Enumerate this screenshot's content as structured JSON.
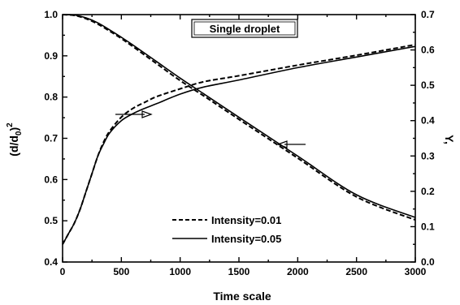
{
  "chart_data": {
    "type": "line",
    "title": "Single droplet",
    "xlabel": "Time scale",
    "ylabel_left_base": "(d/d",
    "ylabel_left_sub": "0",
    "ylabel_left_close": ")",
    "ylabel_left_sup": "2",
    "ylabel_right": "Y,",
    "xlim": [
      0,
      3000
    ],
    "ylim_left": [
      0.4,
      1.0
    ],
    "ylim_right": [
      0.0,
      0.7
    ],
    "xticks": [
      "0",
      "500",
      "1000",
      "1500",
      "2000",
      "2500",
      "3000"
    ],
    "yticks_left": [
      "0.4",
      "0.5",
      "0.6",
      "0.7",
      "0.8",
      "0.9",
      "1.0"
    ],
    "yticks_right": [
      "0.0",
      "0.1",
      "0.2",
      "0.3",
      "0.4",
      "0.5",
      "0.6",
      "0.7"
    ],
    "grid": false,
    "legend_position": "bottom-center",
    "legend": [
      {
        "label": "Intensity=0.01",
        "style": "dashed"
      },
      {
        "label": "Intensity=0.05",
        "style": "solid"
      }
    ],
    "series": [
      {
        "name": "Intensity=0.01",
        "axis": "left",
        "style": "dashed",
        "x": [
          0,
          100,
          200,
          300,
          400,
          500,
          600,
          800,
          1000,
          1200,
          1500,
          2000,
          2500,
          3000
        ],
        "y": [
          1.0,
          0.998,
          0.99,
          0.977,
          0.96,
          0.942,
          0.922,
          0.881,
          0.84,
          0.803,
          0.746,
          0.652,
          0.558,
          0.502
        ]
      },
      {
        "name": "Intensity=0.05",
        "axis": "left",
        "style": "solid",
        "x": [
          0,
          100,
          200,
          300,
          400,
          500,
          600,
          800,
          1000,
          1200,
          1500,
          2000,
          2500,
          3000
        ],
        "y": [
          1.0,
          0.999,
          0.992,
          0.98,
          0.963,
          0.945,
          0.926,
          0.886,
          0.846,
          0.808,
          0.751,
          0.657,
          0.563,
          0.508
        ]
      },
      {
        "name": "Intensity=0.01",
        "axis": "right",
        "style": "dashed",
        "x": [
          0,
          50,
          100,
          150,
          200,
          250,
          300,
          350,
          400,
          500,
          600,
          700,
          800,
          1000,
          1200,
          1500,
          2000,
          2500,
          3000
        ],
        "y": [
          0.05,
          0.08,
          0.11,
          0.15,
          0.2,
          0.25,
          0.3,
          0.34,
          0.37,
          0.41,
          0.435,
          0.452,
          0.468,
          0.49,
          0.51,
          0.527,
          0.557,
          0.585,
          0.615
        ]
      },
      {
        "name": "Intensity=0.05",
        "axis": "right",
        "style": "solid",
        "x": [
          0,
          50,
          100,
          150,
          200,
          250,
          300,
          350,
          400,
          500,
          600,
          700,
          800,
          1000,
          1200,
          1500,
          2000,
          2500,
          3000
        ],
        "y": [
          0.05,
          0.08,
          0.11,
          0.15,
          0.2,
          0.25,
          0.3,
          0.335,
          0.365,
          0.4,
          0.42,
          0.435,
          0.448,
          0.475,
          0.495,
          0.515,
          0.55,
          0.58,
          0.61
        ]
      }
    ],
    "annotations": [
      {
        "type": "arrow",
        "direction": "right",
        "points_to": "right axis",
        "near_x": 500
      },
      {
        "type": "arrow",
        "direction": "left",
        "points_to": "left axis",
        "near_x": 1900
      }
    ]
  }
}
